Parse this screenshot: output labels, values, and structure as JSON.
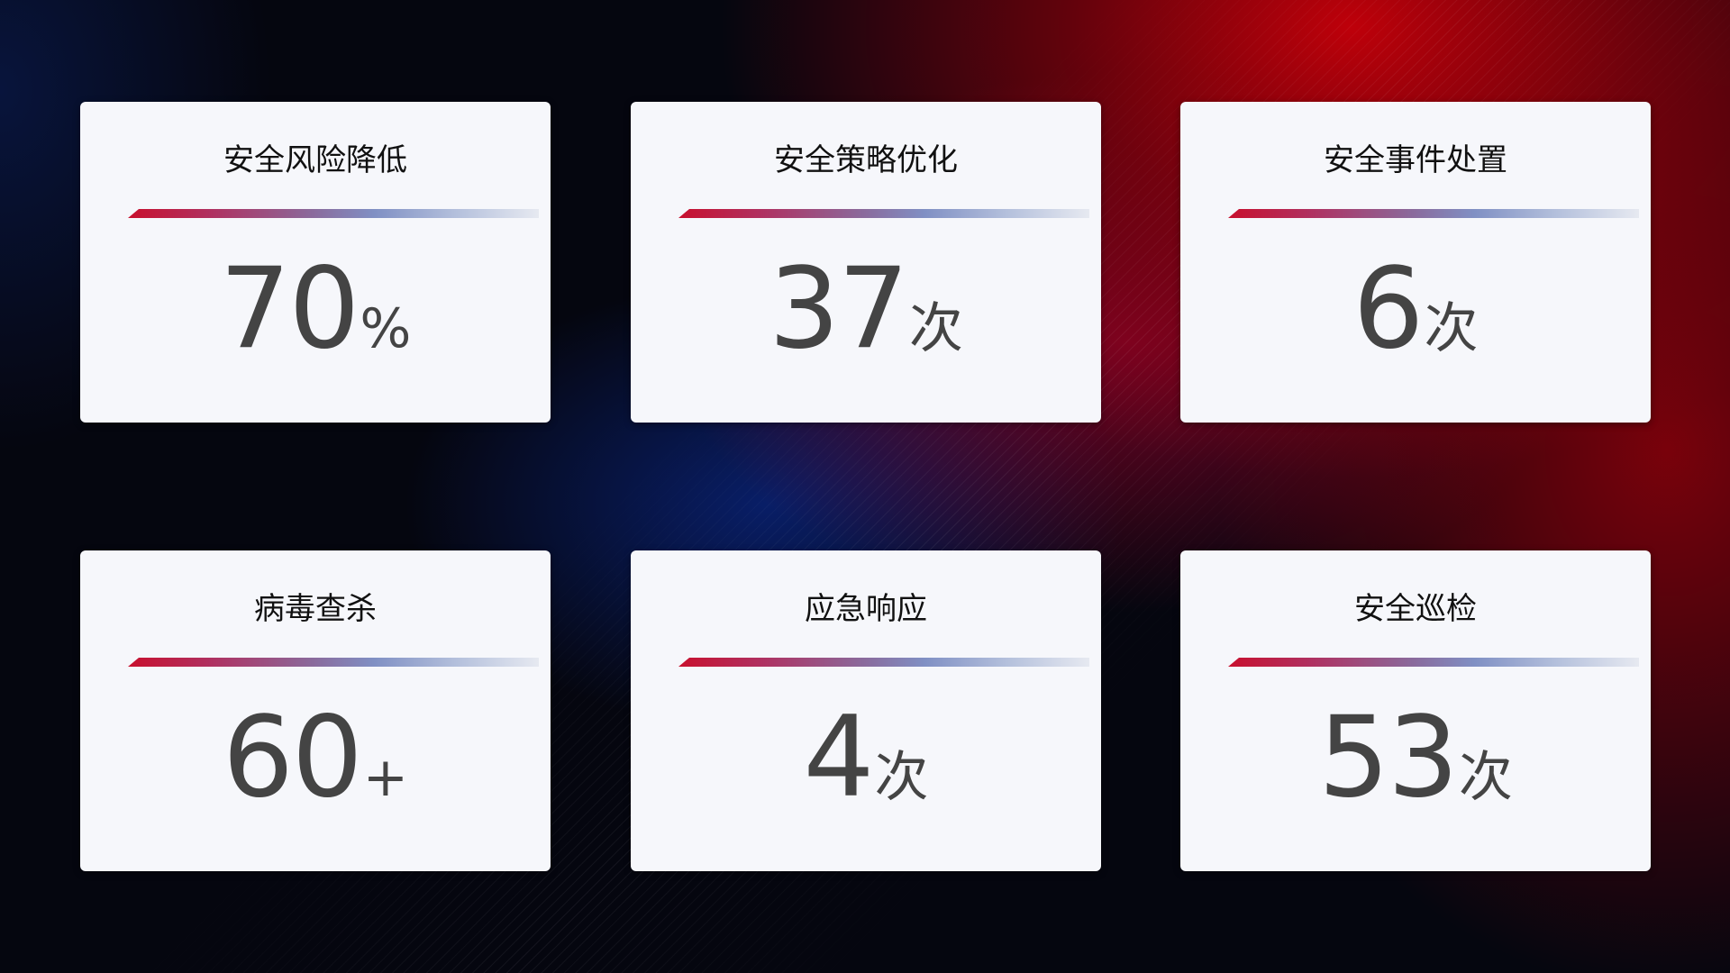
{
  "cards": [
    {
      "title": "安全风险降低",
      "value": "70",
      "unit": "%"
    },
    {
      "title": "安全策略优化",
      "value": "37",
      "unit": "次"
    },
    {
      "title": "安全事件处置",
      "value": "6",
      "unit": "次"
    },
    {
      "title": "病毒查杀",
      "value": "60",
      "unit": "+"
    },
    {
      "title": "应急响应",
      "value": "4",
      "unit": "次"
    },
    {
      "title": "安全巡检",
      "value": "53",
      "unit": "次"
    }
  ],
  "colors": {
    "accent_red": "#c8102e",
    "accent_blue": "#8090c4",
    "card_bg": "#f6f7fb",
    "value_text": "#444444"
  }
}
